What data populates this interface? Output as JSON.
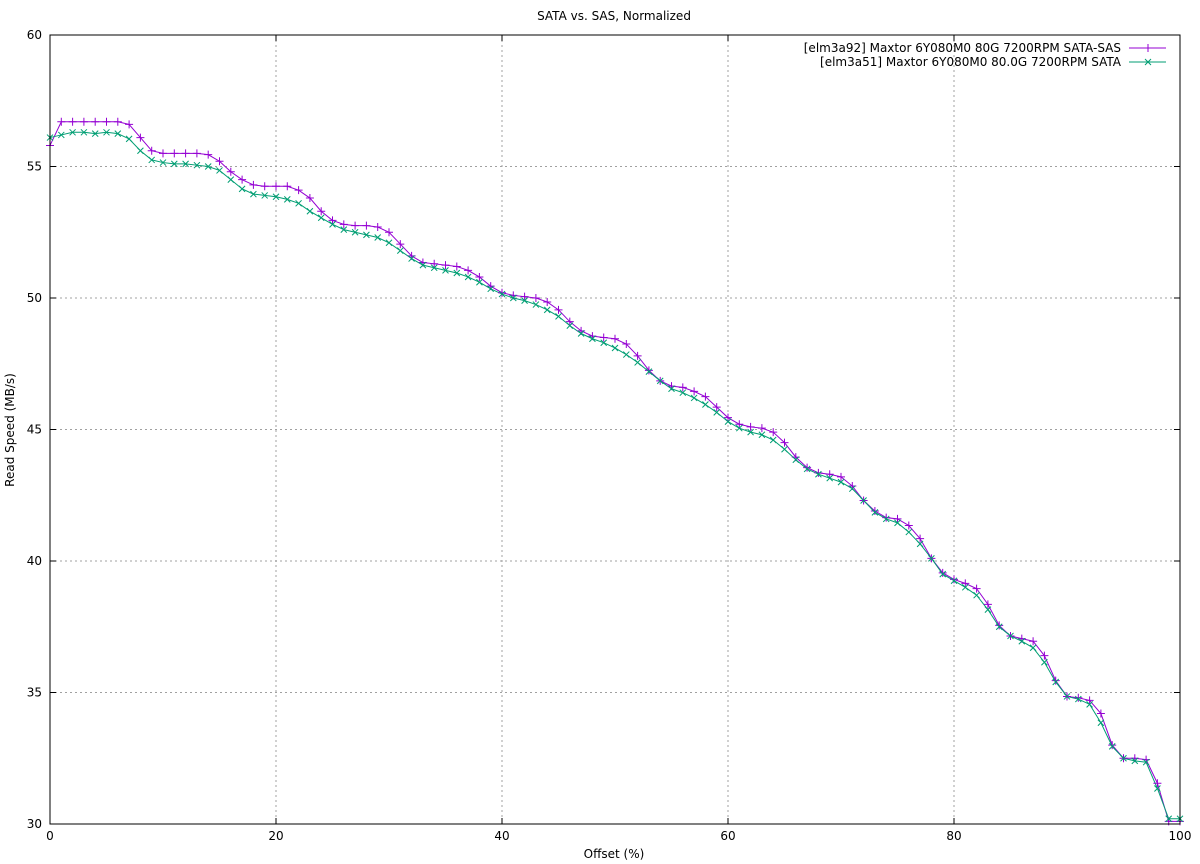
{
  "chart_data": {
    "type": "line",
    "title": "SATA vs. SAS, Normalized",
    "xlabel": "Offset (%)",
    "ylabel": "Read Speed (MB/s)",
    "xlim": [
      0,
      100
    ],
    "ylim": [
      30,
      60
    ],
    "xticks": [
      0,
      20,
      40,
      60,
      80,
      100
    ],
    "yticks": [
      30,
      35,
      40,
      45,
      50,
      55,
      60
    ],
    "xtick_labels": [
      "0",
      "20",
      "40",
      "60",
      "80",
      "100"
    ],
    "ytick_labels": [
      "30",
      "35",
      "40",
      "45",
      "50",
      "55",
      "60"
    ],
    "grid": true,
    "legend_position": "top-right",
    "x": [
      0,
      1,
      2,
      3,
      4,
      5,
      6,
      7,
      8,
      9,
      10,
      11,
      12,
      13,
      14,
      15,
      16,
      17,
      18,
      19,
      20,
      21,
      22,
      23,
      24,
      25,
      26,
      27,
      28,
      29,
      30,
      31,
      32,
      33,
      34,
      35,
      36,
      37,
      38,
      39,
      40,
      41,
      42,
      43,
      44,
      45,
      46,
      47,
      48,
      49,
      50,
      51,
      52,
      53,
      54,
      55,
      56,
      57,
      58,
      59,
      60,
      61,
      62,
      63,
      64,
      65,
      66,
      67,
      68,
      69,
      70,
      71,
      72,
      73,
      74,
      75,
      76,
      77,
      78,
      79,
      80,
      81,
      82,
      83,
      84,
      85,
      86,
      87,
      88,
      89,
      90,
      91,
      92,
      93,
      94,
      95,
      96,
      97,
      98,
      99,
      100
    ],
    "series": [
      {
        "name": "[elm3a92] Maxtor 6Y080M0 80G 7200RPM SATA-SAS",
        "color": "#9400d3",
        "marker": "plus",
        "values": [
          55.8,
          56.7,
          56.7,
          56.7,
          56.7,
          56.7,
          56.7,
          56.6,
          56.1,
          55.6,
          55.5,
          55.5,
          55.5,
          55.5,
          55.45,
          55.2,
          54.8,
          54.5,
          54.3,
          54.25,
          54.25,
          54.25,
          54.1,
          53.8,
          53.3,
          52.95,
          52.8,
          52.75,
          52.75,
          52.7,
          52.5,
          52.05,
          51.6,
          51.35,
          51.3,
          51.25,
          51.2,
          51.05,
          50.8,
          50.45,
          50.2,
          50.1,
          50.05,
          50.0,
          49.85,
          49.55,
          49.1,
          48.75,
          48.55,
          48.5,
          48.45,
          48.25,
          47.8,
          47.25,
          46.85,
          46.65,
          46.6,
          46.45,
          46.25,
          45.85,
          45.45,
          45.2,
          45.1,
          45.05,
          44.9,
          44.5,
          43.95,
          43.55,
          43.35,
          43.3,
          43.2,
          42.85,
          42.3,
          41.9,
          41.65,
          41.6,
          41.35,
          40.85,
          40.1,
          39.55,
          39.3,
          39.15,
          38.95,
          38.35,
          37.55,
          37.15,
          37.05,
          36.95,
          36.4,
          35.45,
          34.85,
          34.8,
          34.7,
          34.2,
          33.0,
          32.5,
          32.5,
          32.45,
          31.55,
          30.1,
          30.1
        ]
      },
      {
        "name": "[elm3a51] Maxtor 6Y080M0 80.0G 7200RPM SATA",
        "color": "#009e73",
        "marker": "cross",
        "values": [
          56.1,
          56.2,
          56.3,
          56.3,
          56.25,
          56.3,
          56.25,
          56.05,
          55.6,
          55.25,
          55.15,
          55.1,
          55.1,
          55.05,
          55.0,
          54.85,
          54.5,
          54.15,
          53.95,
          53.9,
          53.85,
          53.75,
          53.6,
          53.3,
          53.05,
          52.8,
          52.6,
          52.5,
          52.4,
          52.3,
          52.1,
          51.8,
          51.5,
          51.25,
          51.15,
          51.05,
          50.95,
          50.8,
          50.6,
          50.35,
          50.15,
          50.0,
          49.9,
          49.75,
          49.55,
          49.3,
          48.95,
          48.65,
          48.45,
          48.3,
          48.1,
          47.85,
          47.55,
          47.2,
          46.85,
          46.55,
          46.4,
          46.2,
          45.95,
          45.65,
          45.3,
          45.05,
          44.9,
          44.8,
          44.6,
          44.25,
          43.85,
          43.5,
          43.3,
          43.15,
          43.0,
          42.75,
          42.3,
          41.85,
          41.6,
          41.45,
          41.1,
          40.65,
          40.1,
          39.5,
          39.25,
          39.0,
          38.7,
          38.15,
          37.5,
          37.15,
          36.95,
          36.7,
          36.15,
          35.4,
          34.85,
          34.75,
          34.55,
          33.85,
          32.95,
          32.5,
          32.4,
          32.35,
          31.35,
          30.2,
          30.2
        ]
      }
    ]
  }
}
